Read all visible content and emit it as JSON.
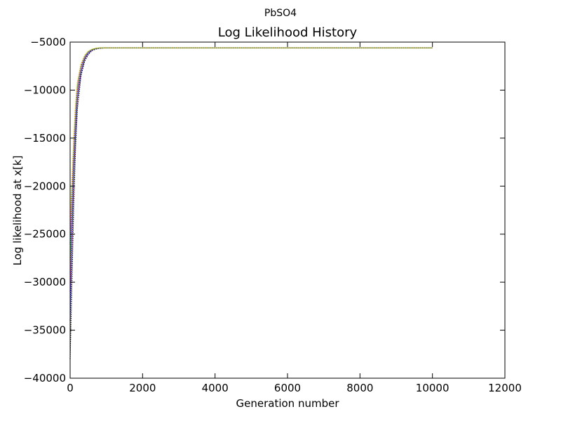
{
  "figure": {
    "suptitle": "PbSO4"
  },
  "chart_data": {
    "type": "line",
    "title": "Log Likelihood History",
    "xlabel": "Generation number",
    "ylabel": "Log likelihood at x[k]",
    "xlim": [
      0,
      12000
    ],
    "ylim": [
      -40000,
      -5000
    ],
    "xticks": [
      0,
      2000,
      4000,
      6000,
      8000,
      10000,
      12000
    ],
    "yticks": [
      -40000,
      -35000,
      -30000,
      -25000,
      -20000,
      -15000,
      -10000,
      -5000
    ],
    "xtick_labels": [
      "0",
      "2000",
      "4000",
      "6000",
      "8000",
      "10000",
      "12000"
    ],
    "ytick_labels": [
      "−40000",
      "−35000",
      "−30000",
      "−25000",
      "−20000",
      "−15000",
      "−10000",
      "−5000"
    ],
    "grid": false,
    "legend": "none",
    "series_colors": [
      "#000000",
      "#0000ff",
      "#ff0000",
      "#00bfbf",
      "#00aa00",
      "#ff00ff",
      "#bfbf00"
    ],
    "series": [
      {
        "x": [
          0,
          50,
          100,
          150,
          200,
          300,
          400,
          500,
          600,
          700,
          800,
          1000,
          2000,
          5000,
          10000
        ],
        "values": [
          -38000,
          -30000,
          -22000,
          -16000,
          -12000,
          -8500,
          -7000,
          -6300,
          -5900,
          -5750,
          -5650,
          -5600,
          -5600,
          -5600,
          -5600
        ]
      },
      {
        "x": [
          0,
          50,
          100,
          150,
          200,
          300,
          400,
          500,
          600,
          700,
          800,
          1000,
          2000,
          5000,
          10000
        ],
        "values": [
          -34000,
          -26000,
          -19000,
          -14500,
          -11000,
          -8200,
          -6800,
          -6200,
          -5850,
          -5700,
          -5640,
          -5600,
          -5600,
          -5600,
          -5600
        ]
      },
      {
        "x": [
          0,
          50,
          100,
          150,
          200,
          300,
          400,
          500,
          600,
          700,
          800,
          1000,
          2000,
          5000,
          10000
        ],
        "values": [
          -31000,
          -24000,
          -18000,
          -13500,
          -10500,
          -7900,
          -6700,
          -6100,
          -5820,
          -5690,
          -5630,
          -5600,
          -5600,
          -5600,
          -5600
        ]
      },
      {
        "x": [
          0,
          50,
          100,
          150,
          200,
          300,
          400,
          500,
          600,
          700,
          800,
          1000,
          2000,
          5000,
          10000
        ],
        "values": [
          -29000,
          -22500,
          -17000,
          -13000,
          -10000,
          -7700,
          -6600,
          -6050,
          -5800,
          -5680,
          -5620,
          -5600,
          -5600,
          -5600,
          -5600
        ]
      },
      {
        "x": [
          0,
          50,
          100,
          150,
          200,
          300,
          400,
          500,
          600,
          700,
          800,
          1000,
          2000,
          5000,
          10000
        ],
        "values": [
          -27500,
          -21500,
          -16500,
          -12500,
          -9800,
          -7600,
          -6550,
          -6020,
          -5790,
          -5670,
          -5615,
          -5600,
          -5600,
          -5600,
          -5600
        ]
      },
      {
        "x": [
          0,
          50,
          100,
          150,
          200,
          300,
          400,
          500,
          600,
          700,
          800,
          1000,
          2000,
          5000,
          10000
        ],
        "values": [
          -26000,
          -20500,
          -15800,
          -12000,
          -9500,
          -7450,
          -6480,
          -5990,
          -5770,
          -5660,
          -5610,
          -5600,
          -5600,
          -5600,
          -5600
        ]
      },
      {
        "x": [
          0,
          50,
          100,
          150,
          200,
          300,
          400,
          500,
          600,
          700,
          800,
          1000,
          2000,
          5000,
          10000
        ],
        "values": [
          -24000,
          -19500,
          -15000,
          -11500,
          -9200,
          -7300,
          -6400,
          -5960,
          -5750,
          -5650,
          -5605,
          -5600,
          -5600,
          -5600,
          -5600
        ]
      }
    ]
  }
}
